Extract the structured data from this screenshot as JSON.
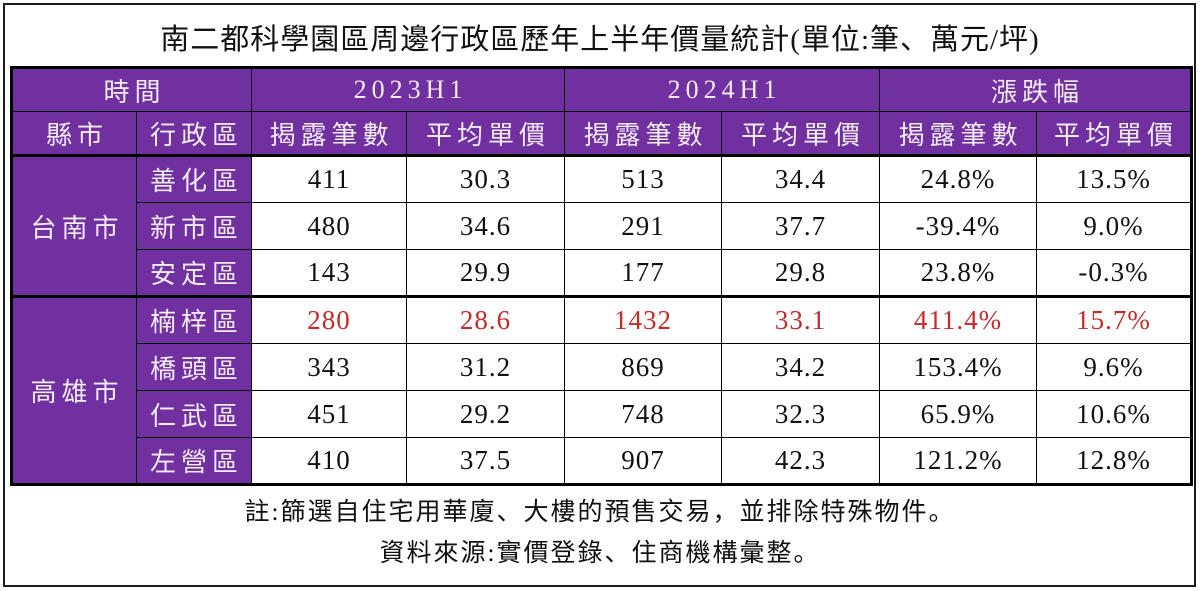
{
  "colors": {
    "purple": "#7030A0",
    "purple-text": "#F4ECFA",
    "red": "#C42B2B",
    "ink": "#111111"
  },
  "chart_data": {
    "type": "table",
    "title": "南二都科學園區周邊行政區歷年上半年價量統計(單位:筆、萬元/坪)",
    "header": {
      "time_label": "時間",
      "periods": [
        "2023H1",
        "2024H1",
        "漲跌幅"
      ],
      "city_label": "縣市",
      "district_label": "行政區",
      "count_label": "揭露筆數",
      "price_label": "平均單價"
    },
    "groups": [
      {
        "city": "台南市",
        "rows": [
          {
            "district": "善化區",
            "values": [
              "411",
              "30.3",
              "513",
              "34.4",
              "24.8%",
              "13.5%"
            ],
            "highlight": false
          },
          {
            "district": "新市區",
            "values": [
              "480",
              "34.6",
              "291",
              "37.7",
              "-39.4%",
              "9.0%"
            ],
            "highlight": false
          },
          {
            "district": "安定區",
            "values": [
              "143",
              "29.9",
              "177",
              "29.8",
              "23.8%",
              "-0.3%"
            ],
            "highlight": false
          }
        ]
      },
      {
        "city": "高雄市",
        "rows": [
          {
            "district": "楠梓區",
            "values": [
              "280",
              "28.6",
              "1432",
              "33.1",
              "411.4%",
              "15.7%"
            ],
            "highlight": true
          },
          {
            "district": "橋頭區",
            "values": [
              "343",
              "31.2",
              "869",
              "34.2",
              "153.4%",
              "9.6%"
            ],
            "highlight": false
          },
          {
            "district": "仁武區",
            "values": [
              "451",
              "29.2",
              "748",
              "32.3",
              "65.9%",
              "10.6%"
            ],
            "highlight": false
          },
          {
            "district": "左營區",
            "values": [
              "410",
              "37.5",
              "907",
              "42.3",
              "121.2%",
              "12.8%"
            ],
            "highlight": false
          }
        ]
      }
    ],
    "notes": [
      "註:篩選自住宅用華廈、大樓的預售交易，並排除特殊物件。",
      "資料來源:實價登錄、住商機構彙整。"
    ]
  }
}
